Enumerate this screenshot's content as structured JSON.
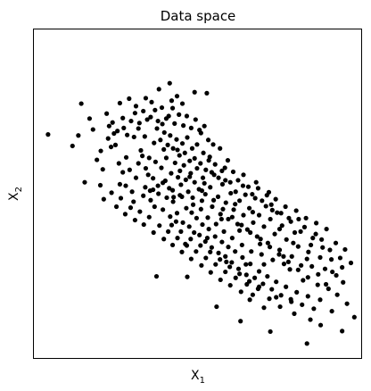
{
  "chart_data": {
    "type": "scatter",
    "title": "Data space",
    "xlabel": {
      "base": "X",
      "sub": "1"
    },
    "ylabel": {
      "base": "X",
      "sub": "2"
    },
    "xlim": [
      -3.4,
      3.3
    ],
    "ylim": [
      -3.1,
      3.5
    ],
    "grid": false,
    "legend": "none",
    "xticks": [],
    "yticks": [],
    "point_color": "#000000",
    "points": [
      [
        -3.11,
        1.39
      ],
      [
        -2.26,
        1.71
      ],
      [
        -2.19,
        1.49
      ],
      [
        -2.11,
        0.88
      ],
      [
        -1.91,
        1.81
      ],
      [
        -1.86,
        1.56
      ],
      [
        -1.76,
        1.41
      ],
      [
        -1.64,
        2.02
      ],
      [
        -1.56,
        1.52
      ],
      [
        -1.45,
        2.11
      ],
      [
        -1.52,
        0.36
      ],
      [
        -1.64,
        0.39
      ],
      [
        -1.31,
        1.96
      ],
      [
        -1.26,
        1.51
      ],
      [
        -1.13,
        1.35
      ],
      [
        -1.11,
        2.12
      ],
      [
        -1.04,
        0.92
      ],
      [
        -0.99,
        2.04
      ],
      [
        -0.84,
        2.3
      ],
      [
        -0.77,
        1.6
      ],
      [
        -0.74,
        1.09
      ],
      [
        -0.71,
        0.46
      ],
      [
        -0.64,
        1.76
      ],
      [
        -0.56,
        1.92
      ],
      [
        -0.54,
        0.13
      ],
      [
        -0.49,
        -0.36
      ],
      [
        -0.46,
        1.08
      ],
      [
        -0.41,
        0.66
      ],
      [
        -0.36,
        2.01
      ],
      [
        -0.3,
        -0.81
      ],
      [
        -0.26,
        -1.47
      ],
      [
        -0.21,
        0.54
      ],
      [
        -0.11,
        2.24
      ],
      [
        -0.01,
        1.48
      ],
      [
        0.04,
        0.06
      ],
      [
        0.09,
        0.41
      ],
      [
        0.15,
        -0.69
      ],
      [
        0.2,
        0.94
      ],
      [
        0.27,
        1.19
      ],
      [
        0.34,
        -2.07
      ],
      [
        0.44,
        -0.31
      ],
      [
        0.51,
        0.72
      ],
      [
        0.54,
        -1.17
      ],
      [
        0.63,
        0.21
      ],
      [
        0.72,
        -0.01
      ],
      [
        0.81,
        -0.54
      ],
      [
        0.88,
        0.36
      ],
      [
        0.94,
        -1.22
      ],
      [
        1.02,
        -1.93
      ],
      [
        1.08,
        -0.17
      ],
      [
        1.15,
        0.43
      ],
      [
        1.23,
        -0.81
      ],
      [
        1.31,
        -1.22
      ],
      [
        1.41,
        0.23
      ],
      [
        1.48,
        -0.13
      ],
      [
        1.56,
        -1.88
      ],
      [
        1.63,
        -0.51
      ],
      [
        1.71,
        -1.06
      ],
      [
        1.84,
        -1.32
      ],
      [
        1.91,
        -0.79
      ],
      [
        2.02,
        -0.31
      ],
      [
        2.11,
        -1.54
      ],
      [
        2.19,
        -1.11
      ],
      [
        2.31,
        -0.69
      ],
      [
        2.42,
        -1.42
      ],
      [
        2.51,
        -0.88
      ],
      [
        2.63,
        -1.71
      ],
      [
        2.7,
        -2.16
      ],
      [
        2.79,
        -1.44
      ],
      [
        2.91,
        -1.28
      ],
      [
        3.09,
        -1.19
      ],
      [
        2.19,
        -2.81
      ],
      [
        1.31,
        -2.09
      ],
      [
        1.86,
        -1.92
      ],
      [
        -0.89,
        -1.46
      ],
      [
        -1.99,
        0.69
      ],
      [
        -1.82,
        1.14
      ],
      [
        -1.73,
        1.18
      ],
      [
        -1.35,
        1.34
      ],
      [
        -1.21,
        1.07
      ],
      [
        -1.39,
        0.24
      ],
      [
        -1.06,
        0.58
      ],
      [
        -0.96,
        0.51
      ],
      [
        -0.91,
        0.84
      ],
      [
        -1.02,
        0.26
      ],
      [
        -0.85,
        0.2
      ],
      [
        -0.79,
        0.72
      ],
      [
        -0.69,
        0.92
      ],
      [
        -0.63,
        0.31
      ],
      [
        -0.59,
        0.61
      ],
      [
        -0.51,
        0.82
      ],
      [
        -0.45,
        0.53
      ],
      [
        -0.39,
        0.38
      ],
      [
        -0.33,
        0.77
      ],
      [
        -0.29,
        0.48
      ],
      [
        -0.24,
        0.24
      ],
      [
        -0.19,
        0.61
      ],
      [
        -0.15,
        0.12
      ],
      [
        -0.11,
        0.43
      ],
      [
        -0.06,
        0.71
      ],
      [
        -0.02,
        0.29
      ],
      [
        0.02,
        -0.11
      ],
      [
        0.06,
        0.52
      ],
      [
        0.11,
        0.19
      ],
      [
        0.16,
        -0.28
      ],
      [
        0.21,
        0.33
      ],
      [
        0.25,
        -0.06
      ],
      [
        0.29,
        0.58
      ],
      [
        0.33,
        -0.41
      ],
      [
        0.37,
        0.14
      ],
      [
        0.42,
        -0.21
      ],
      [
        0.46,
        0.39
      ],
      [
        0.49,
        -0.56
      ],
      [
        0.53,
        0.02
      ],
      [
        0.58,
        -0.31
      ],
      [
        0.62,
        0.43
      ],
      [
        0.66,
        -0.69
      ],
      [
        0.69,
        -0.12
      ],
      [
        0.73,
        0.24
      ],
      [
        0.77,
        -0.41
      ],
      [
        0.81,
        0.06
      ],
      [
        0.86,
        -0.83
      ],
      [
        0.89,
        -0.23
      ],
      [
        0.93,
        0.18
      ],
      [
        0.97,
        -0.52
      ],
      [
        1.01,
        -0.09
      ],
      [
        1.05,
        -0.96
      ],
      [
        1.09,
        -0.38
      ],
      [
        1.13,
        0.11
      ],
      [
        1.17,
        -0.66
      ],
      [
        1.21,
        -0.23
      ],
      [
        1.26,
        -1.02
      ],
      [
        1.31,
        -0.46
      ],
      [
        1.35,
        -0.05
      ],
      [
        1.39,
        -0.79
      ],
      [
        1.44,
        -0.31
      ],
      [
        1.49,
        -1.13
      ],
      [
        1.53,
        -0.61
      ],
      [
        1.58,
        -0.18
      ],
      [
        1.63,
        -0.93
      ],
      [
        1.68,
        -0.44
      ],
      [
        1.72,
        -1.21
      ],
      [
        1.77,
        -0.72
      ],
      [
        1.82,
        -0.29
      ],
      [
        1.88,
        -1.06
      ],
      [
        1.94,
        -0.58
      ],
      [
        2.01,
        -0.86
      ],
      [
        2.07,
        -1.24
      ],
      [
        2.14,
        -0.47
      ],
      [
        2.22,
        -0.97
      ],
      [
        2.29,
        -1.26
      ],
      [
        2.37,
        -0.61
      ],
      [
        2.46,
        -1.08
      ],
      [
        2.56,
        -1.31
      ],
      [
        2.66,
        -0.93
      ],
      [
        -0.94,
        1.22
      ],
      [
        -0.88,
        1.51
      ],
      [
        -0.81,
        1.28
      ],
      [
        -0.73,
        1.43
      ],
      [
        -0.66,
        1.18
      ],
      [
        -0.61,
        1.37
      ],
      [
        -0.55,
        1.11
      ],
      [
        -0.48,
        1.29
      ],
      [
        -0.42,
        0.97
      ],
      [
        -0.36,
        1.21
      ],
      [
        -0.31,
        1.02
      ],
      [
        -0.26,
        1.33
      ],
      [
        -0.21,
        0.86
      ],
      [
        -0.16,
        1.11
      ],
      [
        -0.11,
        0.91
      ],
      [
        -0.06,
        1.19
      ],
      [
        0.01,
        0.81
      ],
      [
        0.07,
        1.02
      ],
      [
        0.12,
        0.68
      ],
      [
        0.18,
        0.87
      ],
      [
        0.24,
        0.63
      ],
      [
        0.31,
        0.79
      ],
      [
        0.38,
        0.52
      ],
      [
        0.45,
        0.66
      ],
      [
        0.52,
        0.47
      ],
      [
        -1.11,
        0.71
      ],
      [
        -1.18,
        0.96
      ],
      [
        -1.26,
        0.81
      ],
      [
        -1.31,
        0.52
      ],
      [
        -1.44,
        0.68
      ],
      [
        -1.51,
        0.93
      ],
      [
        -1.58,
        0.63
      ],
      [
        -1.66,
        0.81
      ],
      [
        -1.12,
        0.33
      ],
      [
        -1.01,
        0.07
      ],
      [
        -0.93,
        -0.06
      ],
      [
        -0.86,
        0.36
      ],
      [
        -0.76,
        -0.12
      ],
      [
        -0.68,
        0.12
      ],
      [
        -0.61,
        -0.26
      ],
      [
        -0.55,
        0.04
      ],
      [
        -0.47,
        -0.19
      ],
      [
        -0.41,
        0.17
      ],
      [
        -0.35,
        -0.38
      ],
      [
        -0.28,
        -0.09
      ],
      [
        -0.22,
        -0.46
      ],
      [
        -0.17,
        -0.18
      ],
      [
        -0.12,
        -0.58
      ],
      [
        -0.07,
        -0.29
      ],
      [
        -0.01,
        -0.63
      ],
      [
        0.05,
        -0.42
      ],
      [
        0.11,
        -0.76
      ],
      [
        0.18,
        -0.51
      ],
      [
        0.24,
        -0.88
      ],
      [
        0.31,
        -0.66
      ],
      [
        0.38,
        -0.99
      ],
      [
        0.45,
        -0.77
      ],
      [
        0.52,
        -1.06
      ],
      [
        0.58,
        -0.87
      ],
      [
        0.65,
        -1.18
      ],
      [
        0.72,
        -0.96
      ],
      [
        0.79,
        -1.31
      ],
      [
        0.87,
        -1.08
      ],
      [
        0.95,
        -1.43
      ],
      [
        1.03,
        -1.21
      ],
      [
        1.12,
        -1.49
      ],
      [
        1.21,
        -1.36
      ],
      [
        1.29,
        -1.61
      ],
      [
        1.38,
        -1.46
      ],
      [
        1.47,
        -1.72
      ],
      [
        1.56,
        -1.57
      ],
      [
        1.66,
        -1.84
      ],
      [
        1.76,
        -1.67
      ],
      [
        1.87,
        -1.97
      ],
      [
        1.98,
        -1.78
      ],
      [
        2.09,
        -2.03
      ],
      [
        2.21,
        -1.86
      ],
      [
        2.33,
        -2.11
      ],
      [
        2.46,
        -1.93
      ],
      [
        2.58,
        -1.62
      ],
      [
        2.71,
        -1.37
      ],
      [
        2.81,
        -1.83
      ],
      [
        2.93,
        -1.58
      ],
      [
        3.01,
        -2.01
      ],
      [
        -1.88,
        1.31
      ],
      [
        -1.79,
        1.63
      ],
      [
        -1.69,
        1.46
      ],
      [
        -1.58,
        1.72
      ],
      [
        -1.49,
        1.38
      ],
      [
        -1.41,
        1.66
      ],
      [
        -1.33,
        1.82
      ],
      [
        -1.24,
        1.62
      ],
      [
        -1.16,
        1.86
      ],
      [
        -1.08,
        1.69
      ],
      [
        -1.01,
        1.74
      ],
      [
        -0.92,
        1.88
      ],
      [
        -0.86,
        1.66
      ],
      [
        -0.78,
        1.93
      ],
      [
        -0.69,
        1.71
      ],
      [
        -0.58,
        2.07
      ],
      [
        -0.52,
        1.61
      ],
      [
        -0.43,
        1.79
      ],
      [
        -0.34,
        1.57
      ],
      [
        -0.27,
        1.76
      ],
      [
        -0.18,
        1.52
      ],
      [
        -0.09,
        1.69
      ],
      [
        0.02,
        1.42
      ],
      [
        0.09,
        1.56
      ],
      [
        0.17,
        1.28
      ],
      [
        -0.47,
        2.16
      ],
      [
        0.14,
        2.22
      ],
      [
        0.41,
        1.11
      ],
      [
        0.57,
        0.87
      ],
      [
        0.68,
        0.64
      ],
      [
        0.78,
        0.47
      ],
      [
        0.89,
        0.58
      ],
      [
        0.99,
        0.34
      ],
      [
        1.07,
        0.19
      ],
      [
        1.19,
        0.31
      ],
      [
        1.27,
        0.06
      ],
      [
        1.37,
        0.17
      ],
      [
        1.46,
        -0.02
      ],
      [
        1.55,
        0.09
      ],
      [
        1.66,
        -0.19
      ],
      [
        1.75,
        -0.06
      ],
      [
        1.86,
        -0.36
      ],
      [
        1.97,
        -0.14
      ],
      [
        2.06,
        -0.56
      ],
      [
        2.17,
        -0.29
      ],
      [
        2.27,
        -0.83
      ],
      [
        2.38,
        -0.39
      ],
      [
        2.49,
        -0.72
      ],
      [
        2.59,
        -0.51
      ],
      [
        2.69,
        -1.12
      ],
      [
        2.78,
        -0.79
      ],
      [
        2.87,
        -1.09
      ],
      [
        2.97,
        -0.92
      ],
      [
        -2.36,
        0.43
      ],
      [
        -2.04,
        0.37
      ],
      [
        -1.97,
        0.09
      ],
      [
        -1.81,
        0.22
      ],
      [
        -1.71,
        -0.06
      ],
      [
        -1.62,
        0.11
      ],
      [
        -1.53,
        -0.21
      ],
      [
        -1.42,
        -0.08
      ],
      [
        -1.33,
        -0.33
      ],
      [
        -1.23,
        -0.16
      ],
      [
        -1.15,
        -0.42
      ],
      [
        -1.04,
        -0.27
      ],
      [
        -0.95,
        -0.58
      ],
      [
        -0.83,
        -0.44
      ],
      [
        -0.74,
        -0.71
      ],
      [
        -0.65,
        -0.56
      ],
      [
        -0.56,
        -0.83
      ],
      [
        -0.46,
        -0.69
      ],
      [
        -0.37,
        -0.97
      ],
      [
        -0.27,
        -0.84
      ],
      [
        -0.18,
        -1.11
      ],
      [
        -0.08,
        -0.96
      ],
      [
        0.03,
        -1.24
      ],
      [
        0.12,
        -1.09
      ],
      [
        0.22,
        -1.38
      ],
      [
        0.32,
        -1.22
      ],
      [
        0.42,
        -1.53
      ],
      [
        0.52,
        -1.37
      ],
      [
        0.62,
        -1.64
      ],
      [
        0.73,
        -1.49
      ],
      [
        0.84,
        -1.77
      ],
      [
        0.96,
        -1.62
      ],
      [
        1.08,
        -1.83
      ],
      [
        1.19,
        -1.71
      ],
      [
        1.42,
        -1.91
      ],
      [
        1.64,
        -2.07
      ],
      [
        1.93,
        -2.21
      ],
      [
        2.26,
        -2.33
      ],
      [
        -0.14,
        -0.02
      ],
      [
        0.04,
        0.26
      ],
      [
        0.28,
        0.07
      ],
      [
        0.47,
        -0.11
      ],
      [
        0.66,
        -0.27
      ],
      [
        0.85,
        -0.43
      ],
      [
        1.03,
        -0.58
      ],
      [
        1.24,
        -0.71
      ],
      [
        1.43,
        -0.87
      ],
      [
        1.62,
        -1.02
      ],
      [
        1.81,
        -1.17
      ],
      [
        2.01,
        -1.33
      ],
      [
        2.21,
        -1.48
      ],
      [
        2.41,
        -1.63
      ],
      [
        -0.37,
        0.14
      ],
      [
        -0.56,
        0.27
      ],
      [
        -0.76,
        0.42
      ],
      [
        -0.96,
        0.28
      ],
      [
        -1.16,
        0.16
      ],
      [
        -1.36,
        0.04
      ],
      [
        -0.58,
        -0.43
      ],
      [
        -0.39,
        -0.56
      ],
      [
        -0.19,
        -0.71
      ],
      [
        0.01,
        -0.84
      ],
      [
        0.21,
        -0.97
      ],
      [
        0.41,
        -1.12
      ],
      [
        0.61,
        -1.27
      ],
      [
        0.81,
        -1.41
      ],
      [
        1.01,
        -1.56
      ],
      [
        1.21,
        -1.67
      ],
      [
        -2.61,
        1.16
      ],
      [
        -2.49,
        1.37
      ],
      [
        -2.03,
        1.06
      ],
      [
        -2.43,
        2.01
      ],
      [
        -0.62,
        2.42
      ],
      [
        1.44,
        -2.57
      ],
      [
        0.83,
        -2.36
      ],
      [
        2.47,
        -2.44
      ],
      [
        2.91,
        -2.56
      ],
      [
        3.16,
        -2.28
      ]
    ]
  }
}
